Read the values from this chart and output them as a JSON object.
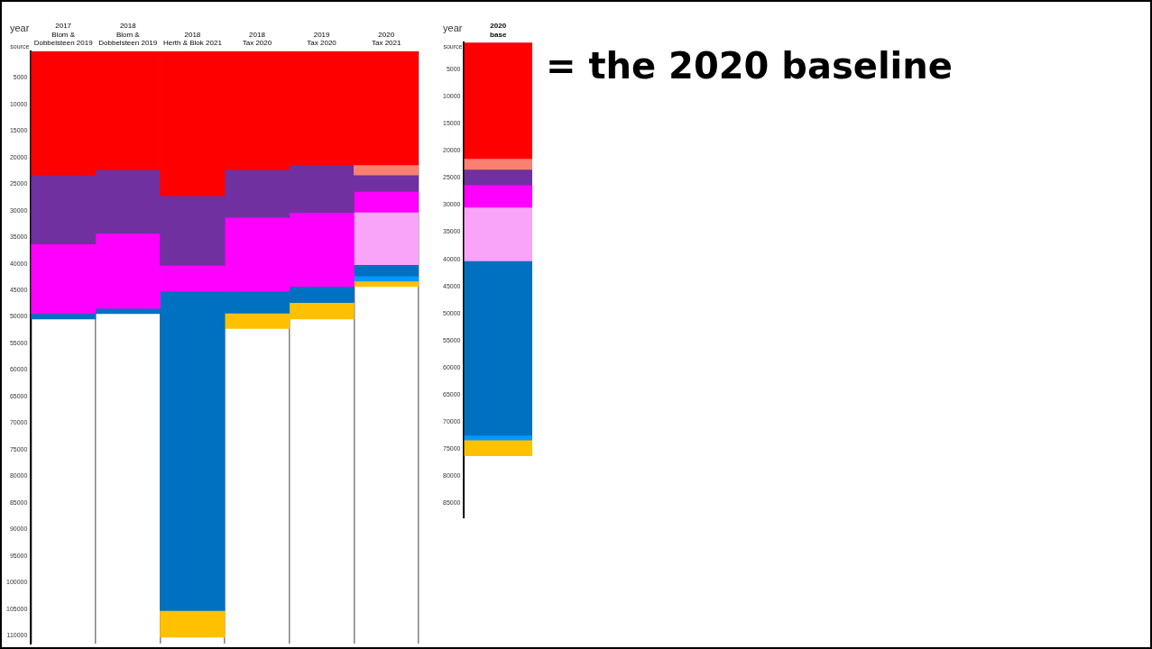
{
  "chart_data": [
    {
      "type": "bar",
      "stacked": true,
      "categories": [
        "2017\nBlom & Dobbelsteen 2019",
        "2018\nBlom & Dobbelsteen 2019",
        "2018\nHerth & Blok 2021",
        "2018\nTax 2020",
        "2019\nTax 2020",
        "2020\nTax 2021"
      ],
      "series": [
        {
          "color": "#ff0000",
          "values": [
            23300,
            22300,
            27200,
            22300,
            21400,
            21400
          ]
        },
        {
          "color": "#fa8072",
          "values": [
            null,
            null,
            null,
            null,
            null,
            1900
          ]
        },
        {
          "color": "#7030a0",
          "values": [
            13000,
            12000,
            13100,
            9000,
            9000,
            3100
          ]
        },
        {
          "color": "#ff00ff",
          "values": [
            13100,
            14100,
            4900,
            13900,
            13900,
            3900
          ]
        },
        {
          "color": "#f9a3f9",
          "values": [
            null,
            null,
            null,
            null,
            null,
            9900
          ]
        },
        {
          "color": "#0070c0",
          "values": [
            1000,
            1000,
            60100,
            4100,
            3000,
            2100
          ]
        },
        {
          "color": "#0099ff",
          "values": [
            null,
            null,
            null,
            null,
            null,
            1000
          ]
        },
        {
          "color": "#ffc000",
          "values": [
            null,
            null,
            5000,
            2900,
            3100,
            1000
          ]
        }
      ],
      "ylim": [
        111500,
        0
      ],
      "yticks": [
        5000,
        10000,
        15000,
        20000,
        25000,
        30000,
        35000,
        40000,
        45000,
        50000,
        55000,
        60000,
        65000,
        70000,
        75000,
        80000,
        85000,
        90000,
        95000,
        100000,
        105000,
        110000
      ],
      "grid": "x",
      "legend": false,
      "annotations": [
        "year",
        "source"
      ]
    },
    {
      "type": "bar",
      "stacked": true,
      "title": "= the 2020 baseline",
      "categories": [
        "2020\nbase"
      ],
      "series": [
        {
          "color": "#ff0000",
          "values": [
            21400
          ]
        },
        {
          "color": "#fa8072",
          "values": [
            2000
          ]
        },
        {
          "color": "#7030a0",
          "values": [
            2900
          ]
        },
        {
          "color": "#ff00ff",
          "values": [
            4100
          ]
        },
        {
          "color": "#f9a3f9",
          "values": [
            9900
          ]
        },
        {
          "color": "#0070c0",
          "values": [
            32200
          ]
        },
        {
          "color": "#0099ff",
          "values": [
            900
          ]
        },
        {
          "color": "#ffc000",
          "values": [
            2900
          ]
        }
      ],
      "ylim": [
        87800,
        0
      ],
      "yticks": [
        5000,
        10000,
        15000,
        20000,
        25000,
        30000,
        35000,
        40000,
        45000,
        50000,
        55000,
        60000,
        65000,
        70000,
        75000,
        80000,
        85000
      ],
      "grid": false,
      "legend": false,
      "annotations": [
        "year",
        "source"
      ]
    }
  ]
}
